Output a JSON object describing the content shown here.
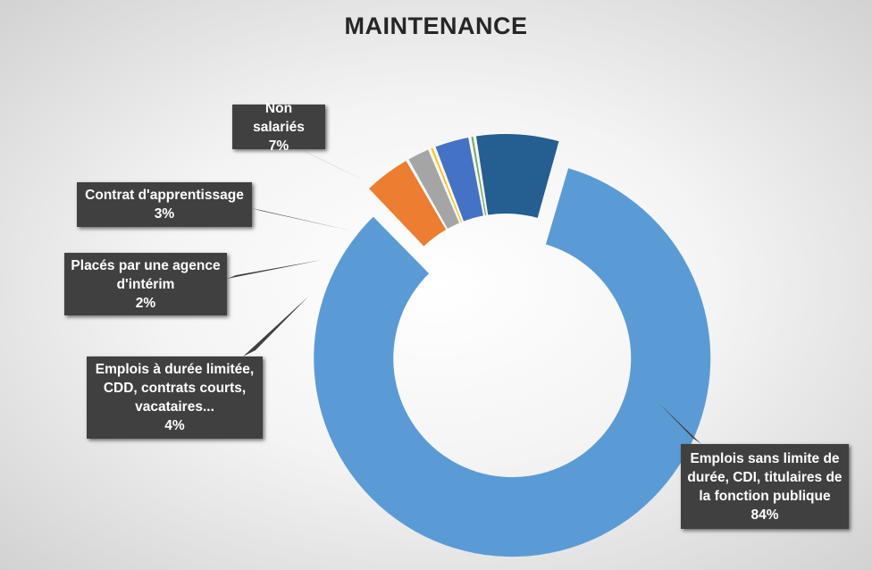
{
  "chart_data": {
    "type": "pie",
    "style": "doughnut",
    "title": "MAINTENANCE",
    "slices": [
      {
        "label": "Emplois sans limite de durée, CDI, titulaires de la fonction publique",
        "value": 84,
        "value_label": "84%",
        "color": "#5b9bd5",
        "exploded": true
      },
      {
        "label": "Emplois à durée limitée, CDD, contrats courts, vacataires...",
        "value": 4,
        "value_label": "4%",
        "color": "#ed7d31"
      },
      {
        "label": "Placés par une agence d'intérim",
        "value": 2,
        "value_label": "2%",
        "color": "#a5a5a5"
      },
      {
        "label": "",
        "value": 0.4,
        "value_label": "",
        "color": "#ffc000"
      },
      {
        "label": "Contrat d'apprentissage",
        "value": 3,
        "value_label": "3%",
        "color": "#4472c4"
      },
      {
        "label": "",
        "value": 0.4,
        "value_label": "",
        "color": "#70ad47"
      },
      {
        "label": "Non salariés",
        "value": 7,
        "value_label": "7%",
        "color": "#255e91"
      }
    ],
    "labels": {
      "cdi": {
        "lines": [
          "Emplois sans limite de",
          "durée, CDI, titulaires de",
          "la fonction publique"
        ],
        "pct": "84%"
      },
      "cdd": {
        "lines": [
          "Emplois à durée limitée,",
          "CDD, contrats courts,",
          "vacataires..."
        ],
        "pct": "4%"
      },
      "interim": {
        "lines": [
          "Placés par une agence",
          "d'intérim"
        ],
        "pct": "2%"
      },
      "apprentissage": {
        "lines": [
          "Contrat d'apprentissage"
        ],
        "pct": "3%"
      },
      "non_salaries": {
        "lines": [
          "Non salariés"
        ],
        "pct": "7%"
      }
    },
    "legend": "none"
  }
}
